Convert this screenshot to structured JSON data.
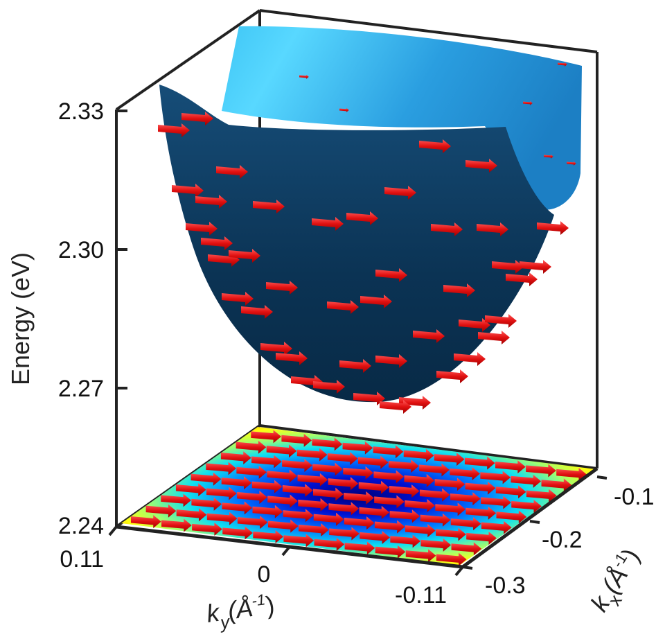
{
  "chart_data": {
    "type": "surface",
    "title": "",
    "zlabel": "Energy (eV)",
    "xlabel_main": "k",
    "xlabel_sub": "y",
    "xlabel_unit": "(Å",
    "xlabel_exp": "-1",
    "xlabel_close": ")",
    "ylabel_main": "k",
    "ylabel_sub": "x",
    "ylabel_unit": "(Å",
    "ylabel_exp": "-1",
    "ylabel_close": ")",
    "z_ticks": [
      "2.33",
      "2.30",
      "2.27",
      "2.24"
    ],
    "zlim": [
      2.24,
      2.33
    ],
    "ky_ticks": [
      "0.11",
      "0",
      "-0.11"
    ],
    "kylim": [
      -0.11,
      0.11
    ],
    "kx_ticks": [
      "-0.1",
      "-0.2",
      "-0.3"
    ],
    "kxlim": [
      -0.33,
      -0.07
    ],
    "surface": "paraboloid with minimum near 2.265 eV at ky=0, kx≈-0.2",
    "projection": "colormap (jet) of energy on kx-ky plane with spin-texture arrows",
    "arrow_color": "#e01010",
    "surface_front_color": "#0d3a5c",
    "surface_back_color": "#2a9ee0"
  }
}
